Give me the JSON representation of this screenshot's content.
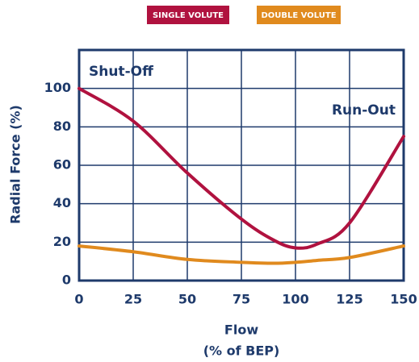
{
  "chart_data": {
    "type": "line",
    "x": [
      0,
      25,
      50,
      75,
      90,
      100,
      110,
      125,
      150
    ],
    "series": [
      {
        "name": "SINGLE VOLUTE",
        "color": "#b0123f",
        "values": [
          100,
          83,
          56,
          32,
          21,
          17,
          19,
          30,
          75
        ]
      },
      {
        "name": "DOUBLE VOLUTE",
        "color": "#e08a1e",
        "values": [
          18,
          15,
          11,
          9.5,
          9,
          9.5,
          10.5,
          12,
          18
        ]
      }
    ],
    "xlim": [
      0,
      150
    ],
    "xticks": [
      0,
      25,
      50,
      75,
      100,
      125,
      150
    ],
    "ylim": [
      0,
      120
    ],
    "yticks": [
      0,
      20,
      40,
      60,
      80,
      100
    ],
    "grid": true,
    "xlabel": [
      "Flow",
      "(% of BEP)"
    ],
    "ylabel": "Radial Force (%)",
    "annotations": [
      "Shut-Off",
      "Run-Out"
    ]
  }
}
